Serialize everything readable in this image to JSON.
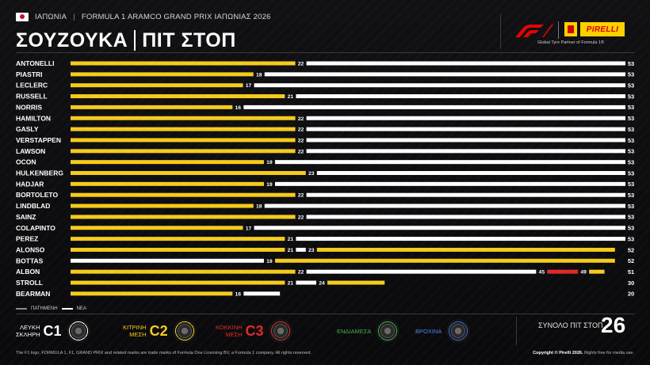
{
  "header": {
    "country": "ΙΑΠΩΝΙΑ",
    "event": "FORMULA 1 ARAMCO GRAND PRIX ΙΑΠΩΝΙΑΣ 2026",
    "circuit": "ΣΟΥΖΟΥΚΑ",
    "section": "ΠΙΤ ΣΤΟΠ",
    "partner_text": "Global Tyre Partner of Formula 1®",
    "pirelli_logo_text": "PIRELLI"
  },
  "colors": {
    "background": "#0b0b0d",
    "c1_hard": "#ffffff",
    "c2_medium": "#f5cb1d",
    "c3_soft": "#e02a2a",
    "intermediate": "#3fb24a",
    "wet": "#2f6ed6"
  },
  "chart_data": {
    "type": "bar",
    "orientation": "horizontal-stacked",
    "x_range": [
      0,
      53
    ],
    "drivers": [
      {
        "name": "ANTONELLI",
        "stints": [
          {
            "compound": "C2",
            "end": 22
          },
          {
            "compound": "C1",
            "end": 53
          }
        ]
      },
      {
        "name": "PIASTRI",
        "stints": [
          {
            "compound": "C2",
            "end": 18
          },
          {
            "compound": "C1",
            "end": 53
          }
        ]
      },
      {
        "name": "LECLERC",
        "stints": [
          {
            "compound": "C2",
            "end": 17
          },
          {
            "compound": "C1",
            "end": 53
          }
        ]
      },
      {
        "name": "RUSSELL",
        "stints": [
          {
            "compound": "C2",
            "end": 21
          },
          {
            "compound": "C1",
            "end": 53
          }
        ]
      },
      {
        "name": "NORRIS",
        "stints": [
          {
            "compound": "C2",
            "end": 16
          },
          {
            "compound": "C1",
            "end": 53
          }
        ]
      },
      {
        "name": "HAMILTON",
        "stints": [
          {
            "compound": "C2",
            "end": 22
          },
          {
            "compound": "C1",
            "end": 53
          }
        ]
      },
      {
        "name": "GASLY",
        "stints": [
          {
            "compound": "C2",
            "end": 22
          },
          {
            "compound": "C1",
            "end": 53
          }
        ]
      },
      {
        "name": "VERSTAPPEN",
        "stints": [
          {
            "compound": "C2",
            "end": 22
          },
          {
            "compound": "C1",
            "end": 53
          }
        ]
      },
      {
        "name": "LAWSON",
        "stints": [
          {
            "compound": "C2",
            "end": 22
          },
          {
            "compound": "C1",
            "end": 53
          }
        ]
      },
      {
        "name": "OCON",
        "stints": [
          {
            "compound": "C2",
            "end": 19
          },
          {
            "compound": "C1",
            "end": 53
          }
        ]
      },
      {
        "name": "HULKENBERG",
        "stints": [
          {
            "compound": "C2",
            "end": 23
          },
          {
            "compound": "C1",
            "end": 53
          }
        ]
      },
      {
        "name": "HADJAR",
        "stints": [
          {
            "compound": "C2",
            "end": 19
          },
          {
            "compound": "C1",
            "end": 53
          }
        ]
      },
      {
        "name": "BORTOLETO",
        "stints": [
          {
            "compound": "C2",
            "end": 22
          },
          {
            "compound": "C1",
            "end": 53
          }
        ]
      },
      {
        "name": "LINDBLAD",
        "stints": [
          {
            "compound": "C2",
            "end": 18
          },
          {
            "compound": "C1",
            "end": 53
          }
        ]
      },
      {
        "name": "SAINZ",
        "stints": [
          {
            "compound": "C2",
            "end": 22
          },
          {
            "compound": "C1",
            "end": 53
          }
        ]
      },
      {
        "name": "COLAPINTO",
        "stints": [
          {
            "compound": "C2",
            "end": 17
          },
          {
            "compound": "C1",
            "end": 53
          }
        ]
      },
      {
        "name": "PEREZ",
        "stints": [
          {
            "compound": "C2",
            "end": 21
          },
          {
            "compound": "C1",
            "end": 53
          }
        ]
      },
      {
        "name": "ALONSO",
        "stints": [
          {
            "compound": "C2",
            "end": 21
          },
          {
            "compound": "C1",
            "end": 23
          },
          {
            "compound": "C2",
            "end": 52
          }
        ]
      },
      {
        "name": "BOTTAS",
        "stints": [
          {
            "compound": "C1",
            "end": 19
          },
          {
            "compound": "C2",
            "end": 52
          }
        ]
      },
      {
        "name": "ALBON",
        "stints": [
          {
            "compound": "C2",
            "end": 22
          },
          {
            "compound": "C1",
            "end": 45
          },
          {
            "compound": "C3",
            "end": 49
          },
          {
            "compound": "C2",
            "end": 51
          }
        ]
      },
      {
        "name": "STROLL",
        "stints": [
          {
            "compound": "C2",
            "end": 21
          },
          {
            "compound": "C1",
            "end": 24
          },
          {
            "compound": "C2",
            "end": 30
          }
        ]
      },
      {
        "name": "BEARMAN",
        "stints": [
          {
            "compound": "C2",
            "end": 16
          },
          {
            "compound": "C1",
            "end": 20
          }
        ]
      }
    ]
  },
  "legend": {
    "used_label": "ΠΑΤΗΜΕΝΗ",
    "new_label": "ΝΕΑ"
  },
  "tyres": [
    {
      "name_line1": "ΛΕΥΚΗ",
      "name_line2": "ΣΚΛΗΡΗ",
      "code": "C1",
      "color": "#ffffff"
    },
    {
      "name_line1": "ΚΙΤΡΙΝΗ",
      "name_line2": "ΜΕΣΗ",
      "code": "C2",
      "color": "#f5cb1d"
    },
    {
      "name_line1": "ΚΟΚΚΙΝΗ",
      "name_line2": "ΜΕΣΗ",
      "code": "C3",
      "color": "#e02a2a"
    },
    {
      "name_line1": "ΕΝΔΙΑΜΕΣΑ",
      "name_line2": "",
      "code": "",
      "color": "#3fb24a"
    },
    {
      "name_line1": "ΒΡΟΧΙΝΑ",
      "name_line2": "",
      "code": "",
      "color": "#2f6ed6"
    }
  ],
  "total": {
    "label": "ΣΥΝΟΛΟ ΠΙΤ ΣΤΟΠ",
    "value": "26"
  },
  "footer": {
    "disclaimer": "The F1 logo, FORMULA 1, F1, GRAND PRIX and related marks are trade marks of Formula One Licensing BV, a Formula 1 company. All rights reserved.",
    "copyright": "Copyright © Pirelli 2026.",
    "copyright_note": "Rights free for media use."
  }
}
